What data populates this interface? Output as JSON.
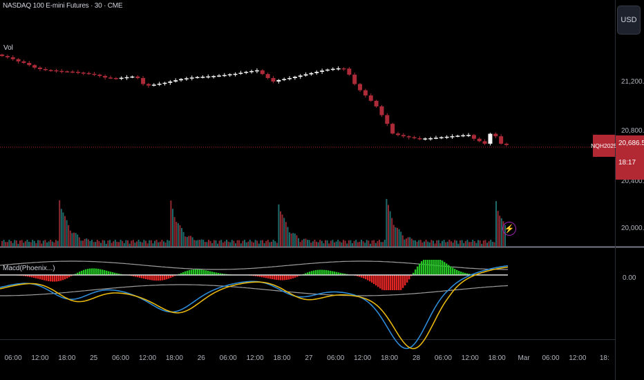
{
  "symbol_title": "NASDAQ 100 E-mini Futures · 30 · CME",
  "volume_label": "Vol",
  "indicator_label": "Macd(Phoenix...)",
  "currency_button": "USD",
  "price_axis": {
    "ticks": [
      "21,200.00",
      "20,800.00",
      "20,400.00",
      "20,000.00"
    ],
    "indicator_tick": "0.00"
  },
  "last_price": {
    "symbol": "NQH2025",
    "price": "20,686.50",
    "countdown": "18:17",
    "value": 20686.5
  },
  "time_axis": [
    "06:00",
    "12:00",
    "18:00",
    "25",
    "06:00",
    "12:00",
    "18:00",
    "26",
    "06:00",
    "12:00",
    "18:00",
    "27",
    "06:00",
    "12:00",
    "18:00",
    "28",
    "06:00",
    "12:00",
    "18:00",
    "Mar",
    "06:00",
    "12:00",
    "18:"
  ],
  "colors": {
    "up": "#f5f5f5",
    "down": "#ad2b38",
    "vol_up": "#1e6b6b",
    "vol_down": "#8f2a33",
    "price_line": "#b22833",
    "macd_line": "#2e8bd8",
    "signal_line": "#e8b80f",
    "hist_up": "#25c425",
    "hist_down": "#e02525",
    "bands": "#9e9e9e"
  },
  "chart_data": {
    "type": "line",
    "price_close": [
      21405,
      21395,
      21380,
      21362,
      21350,
      21332,
      21312,
      21300,
      21292,
      21290,
      21285,
      21282,
      21280,
      21278,
      21272,
      21268,
      21262,
      21255,
      21245,
      21232,
      21228,
      21225,
      21230,
      21235,
      21240,
      21228,
      21180,
      21168,
      21175,
      21182,
      21190,
      21200,
      21210,
      21220,
      21226,
      21232,
      21236,
      21238,
      21241,
      21244,
      21248,
      21252,
      21258,
      21262,
      21270,
      21278,
      21284,
      21290,
      21260,
      21228,
      21200,
      21212,
      21220,
      21228,
      21238,
      21248,
      21258,
      21268,
      21278,
      21288,
      21296,
      21302,
      21306,
      21304,
      21255,
      21180,
      21130,
      21088,
      21045,
      21000,
      20930,
      20860,
      20782,
      20770,
      20760,
      20752,
      20744,
      20740,
      20742,
      20744,
      20748,
      20752,
      20756,
      20760,
      20764,
      20768,
      20770,
      20740,
      20720,
      20700,
      20780,
      20760,
      20700,
      20690
    ]
  }
}
